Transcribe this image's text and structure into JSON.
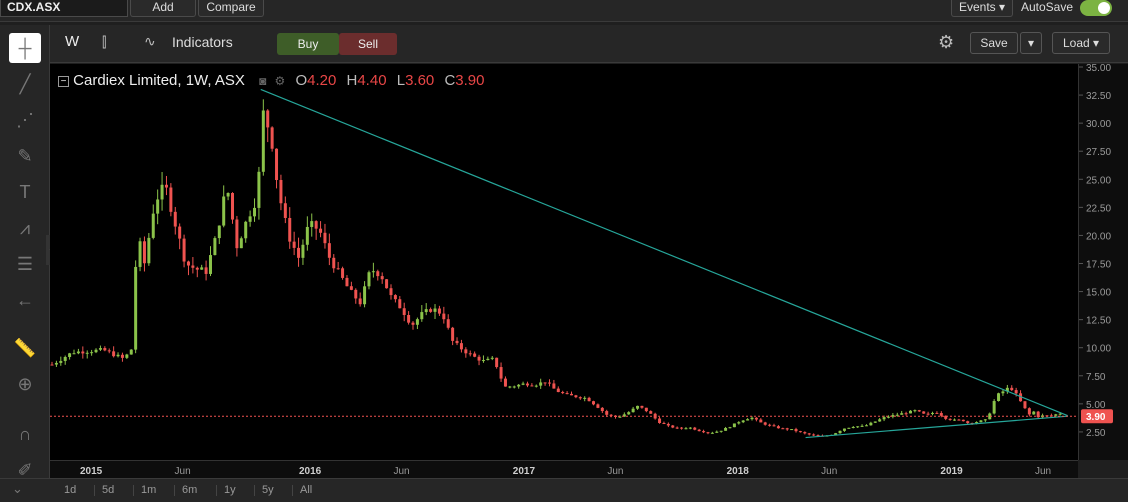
{
  "topbar": {
    "symbol": "CDX.ASX",
    "add_label": "Add",
    "compare_label": "Compare",
    "events_label": "Events ▾",
    "autosave_label": "AutoSave"
  },
  "toolbar": {
    "interval": "W",
    "indicators_label": "Indicators",
    "buy_label": "Buy",
    "sell_label": "Sell",
    "save_label": "Save",
    "load_label": "Load ▾"
  },
  "legend": {
    "title": "Cardiex Limited, 1W, ASX",
    "o_key": "O",
    "o_val": "4.20",
    "h_key": "H",
    "h_val": "4.40",
    "l_key": "L",
    "l_val": "3.60",
    "c_key": "C",
    "c_val": "3.90"
  },
  "ranges": [
    "1d",
    "5d",
    "1m",
    "6m",
    "1y",
    "5y",
    "All"
  ],
  "colors": {
    "up": "#8bc34a",
    "down": "#ef5350",
    "trend": "#26a69a",
    "price_line": "#ef5350",
    "price_badge": "#ef5350"
  },
  "chart_data": {
    "type": "candlestick",
    "ylim": [
      0,
      35
    ],
    "y_ticks": [
      "2.50",
      "5.00",
      "7.50",
      "10.00",
      "12.50",
      "15.00",
      "17.50",
      "20.00",
      "22.50",
      "25.00",
      "27.50",
      "30.00",
      "32.50",
      "35.00"
    ],
    "x_ticks": [
      {
        "label": "2015",
        "t": 0.04
      },
      {
        "label": "Jun",
        "t": 0.129
      },
      {
        "label": "2016",
        "t": 0.253
      },
      {
        "label": "Jun",
        "t": 0.342
      },
      {
        "label": "2017",
        "t": 0.461
      },
      {
        "label": "Jun",
        "t": 0.55
      },
      {
        "label": "2018",
        "t": 0.669
      },
      {
        "label": "Jun",
        "t": 0.758
      },
      {
        "label": "2019",
        "t": 0.877
      },
      {
        "label": "Jun",
        "t": 0.966
      }
    ],
    "last_price": 3.9,
    "last_price_label": "3.90",
    "close_path": [
      [
        0,
        8.5
      ],
      [
        0.02,
        9.6
      ],
      [
        0.05,
        9.8
      ],
      [
        0.07,
        9.0
      ],
      [
        0.08,
        10.2
      ],
      [
        0.082,
        20.5
      ],
      [
        0.09,
        17.5
      ],
      [
        0.1,
        23.0
      ],
      [
        0.11,
        24.5
      ],
      [
        0.12,
        21.0
      ],
      [
        0.13,
        17.5
      ],
      [
        0.14,
        17.0
      ],
      [
        0.15,
        16.8
      ],
      [
        0.16,
        20.0
      ],
      [
        0.17,
        24.5
      ],
      [
        0.18,
        19.0
      ],
      [
        0.19,
        21.5
      ],
      [
        0.2,
        23.5
      ],
      [
        0.205,
        31.0
      ],
      [
        0.213,
        29.0
      ],
      [
        0.22,
        24.0
      ],
      [
        0.23,
        20.0
      ],
      [
        0.24,
        18.0
      ],
      [
        0.25,
        21.0
      ],
      [
        0.26,
        20.5
      ],
      [
        0.27,
        18.0
      ],
      [
        0.28,
        16.5
      ],
      [
        0.29,
        15.0
      ],
      [
        0.3,
        14.0
      ],
      [
        0.31,
        17.0
      ],
      [
        0.32,
        16.5
      ],
      [
        0.33,
        14.5
      ],
      [
        0.34,
        13.5
      ],
      [
        0.35,
        12.0
      ],
      [
        0.36,
        13.0
      ],
      [
        0.37,
        13.5
      ],
      [
        0.38,
        13.0
      ],
      [
        0.39,
        10.5
      ],
      [
        0.4,
        9.8
      ],
      [
        0.41,
        9.2
      ],
      [
        0.42,
        8.8
      ],
      [
        0.43,
        9.0
      ],
      [
        0.44,
        6.5
      ],
      [
        0.45,
        6.6
      ],
      [
        0.46,
        6.8
      ],
      [
        0.47,
        6.7
      ],
      [
        0.48,
        7.0
      ],
      [
        0.49,
        6.2
      ],
      [
        0.5,
        5.8
      ],
      [
        0.52,
        5.5
      ],
      [
        0.53,
        4.8
      ],
      [
        0.54,
        4.0
      ],
      [
        0.55,
        3.8
      ],
      [
        0.56,
        4.2
      ],
      [
        0.57,
        4.8
      ],
      [
        0.58,
        4.3
      ],
      [
        0.59,
        3.4
      ],
      [
        0.6,
        3.0
      ],
      [
        0.61,
        2.8
      ],
      [
        0.62,
        2.9
      ],
      [
        0.63,
        2.6
      ],
      [
        0.64,
        2.4
      ],
      [
        0.65,
        2.6
      ],
      [
        0.66,
        3.0
      ],
      [
        0.67,
        3.5
      ],
      [
        0.68,
        3.8
      ],
      [
        0.69,
        3.3
      ],
      [
        0.7,
        3.0
      ],
      [
        0.71,
        2.8
      ],
      [
        0.72,
        2.7
      ],
      [
        0.73,
        2.4
      ],
      [
        0.74,
        2.2
      ],
      [
        0.75,
        2.1
      ],
      [
        0.76,
        2.3
      ],
      [
        0.77,
        2.8
      ],
      [
        0.78,
        3.0
      ],
      [
        0.79,
        3.0
      ],
      [
        0.8,
        3.4
      ],
      [
        0.81,
        3.8
      ],
      [
        0.82,
        4.0
      ],
      [
        0.83,
        4.2
      ],
      [
        0.84,
        4.4
      ],
      [
        0.85,
        4.0
      ],
      [
        0.86,
        4.3
      ],
      [
        0.87,
        3.7
      ],
      [
        0.88,
        3.5
      ],
      [
        0.885,
        3.6
      ],
      [
        0.89,
        3.3
      ],
      [
        0.9,
        3.4
      ],
      [
        0.91,
        3.6
      ],
      [
        0.915,
        5.0
      ],
      [
        0.92,
        5.8
      ],
      [
        0.925,
        6.1
      ],
      [
        0.93,
        6.4
      ],
      [
        0.935,
        6.3
      ],
      [
        0.94,
        5.5
      ],
      [
        0.945,
        4.8
      ],
      [
        0.95,
        4.0
      ],
      [
        0.955,
        4.3
      ],
      [
        0.96,
        3.8
      ],
      [
        0.965,
        4.0
      ],
      [
        0.97,
        3.9
      ],
      [
        0.975,
        4.0
      ],
      [
        0.98,
        4.2
      ],
      [
        0.985,
        3.9
      ]
    ],
    "trendlines": [
      {
        "from": [
          0.205,
          33.0
        ],
        "to": [
          0.99,
          3.95
        ]
      },
      {
        "from": [
          0.735,
          2.0
        ],
        "to": [
          0.99,
          3.9
        ]
      }
    ]
  }
}
